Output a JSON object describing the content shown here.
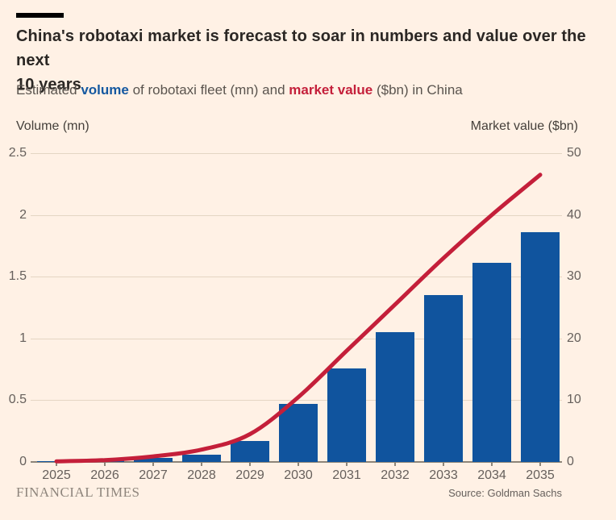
{
  "header": {
    "title": "China's robotaxi market is forecast to soar in numbers and value over the next 10 years",
    "title_lines": [
      "China's robotaxi market is forecast to soar in numbers and value over the next",
      "10 years"
    ],
    "subtitle": {
      "lead": "Estimated ",
      "volume_label": "volume",
      "mid": " of robotaxi fleet (mn) and ",
      "value_label": "market value",
      "tail": " ($bn) in China"
    }
  },
  "chart_data": {
    "type": "bar+line combo",
    "categories": [
      "2025",
      "2026",
      "2027",
      "2028",
      "2029",
      "2030",
      "2031",
      "2032",
      "2033",
      "2034",
      "2035"
    ],
    "series": [
      {
        "name": "Volume (mn)",
        "type": "bar",
        "axis": "left",
        "color": "#10549e",
        "values": [
          0.004,
          0.01,
          0.03,
          0.06,
          0.17,
          0.47,
          0.76,
          1.05,
          1.35,
          1.61,
          1.86
        ]
      },
      {
        "name": "Market value ($bn)",
        "type": "line",
        "axis": "right",
        "color": "#c41f3a",
        "values": [
          0.1,
          0.3,
          0.9,
          2,
          4.5,
          10.5,
          18,
          25.5,
          33,
          40,
          46.5
        ]
      }
    ],
    "left_axis": {
      "title": "Volume (mn)",
      "ticks": [
        0,
        0.5,
        1,
        1.5,
        2,
        2.5
      ],
      "range": [
        0,
        2.5
      ]
    },
    "right_axis": {
      "title": "Market value ($bn)",
      "ticks": [
        0,
        10,
        20,
        30,
        40,
        50
      ],
      "range": [
        0,
        50
      ]
    },
    "grid": true,
    "legend_position": "none (labels colored in subtitle)"
  },
  "footer": {
    "brand": "FINANCIAL TIMES",
    "source": "Source: Goldman Sachs"
  },
  "colors": {
    "background": "#FFF1E5",
    "bar_blue": "#10549e",
    "line_red": "#c41f3a",
    "gridline": "#e4d5c3",
    "axis_text": "#66605C",
    "accent_bar": "#000000"
  }
}
